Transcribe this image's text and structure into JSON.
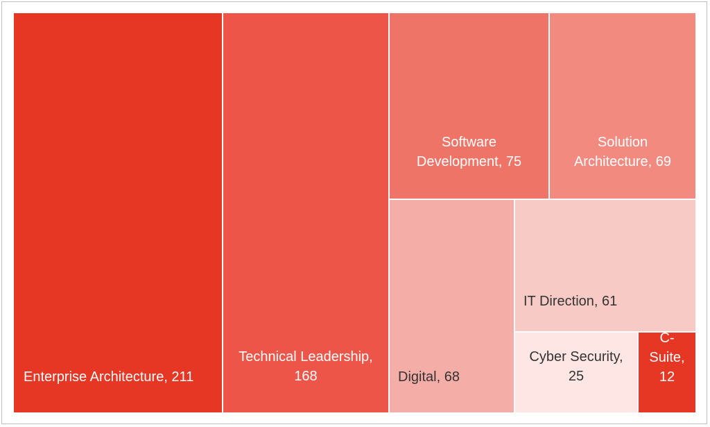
{
  "chart_data": {
    "type": "treemap",
    "title": "",
    "items": [
      {
        "name": "Enterprise Architecture",
        "value": 211,
        "label": [
          "Enterprise Architecture, 211"
        ],
        "color": "#e63624",
        "text_color": "#ffffff"
      },
      {
        "name": "Technical Leadership",
        "value": 168,
        "label": [
          "Technical Leadership,",
          "168"
        ],
        "color": "#ec5548",
        "text_color": "#ffffff"
      },
      {
        "name": "Software Development",
        "value": 75,
        "label": [
          "Software",
          "Development, 75"
        ],
        "color": "#ef7468",
        "text_color": "#ffffff"
      },
      {
        "name": "Solution Architecture",
        "value": 69,
        "label": [
          "Solution",
          "Architecture, 69"
        ],
        "color": "#f28a80",
        "text_color": "#ffffff"
      },
      {
        "name": "Digital",
        "value": 68,
        "label": [
          "Digital, 68"
        ],
        "color": "#f5aea7",
        "text_color": "#333333"
      },
      {
        "name": "IT Direction",
        "value": 61,
        "label": [
          "IT Direction, 61"
        ],
        "color": "#f8cac5",
        "text_color": "#333333"
      },
      {
        "name": "Cyber Security",
        "value": 25,
        "label": [
          "Cyber Security,",
          "25"
        ],
        "color": "#fde6e3",
        "text_color": "#333333"
      },
      {
        "name": "C-Suite",
        "value": 12,
        "label": [
          "C-",
          "Suite,",
          "12"
        ],
        "color": "#e63624",
        "text_color": "#ffffff"
      }
    ]
  }
}
